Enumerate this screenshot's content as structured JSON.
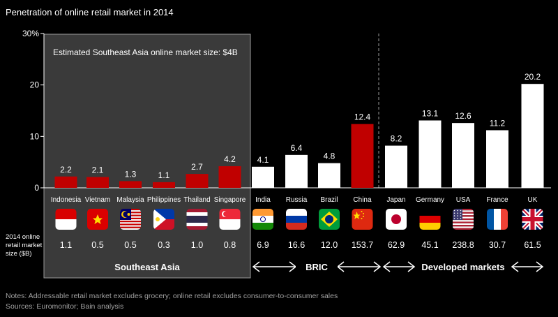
{
  "chart_data": {
    "type": "bar",
    "title": "Penetration of online retail market in 2014",
    "ylim": [
      0,
      30
    ],
    "yticks": [
      0,
      10,
      20,
      30
    ],
    "ytick_labels": [
      "0",
      "10",
      "20",
      "30%"
    ],
    "categories": [
      "Indonesia",
      "Vietnam",
      "Malaysia",
      "Philippines",
      "Thailand",
      "Singapore",
      "India",
      "Russia",
      "Brazil",
      "China",
      "Japan",
      "Germany",
      "USA",
      "France",
      "UK"
    ],
    "values": [
      2.2,
      2.1,
      1.3,
      1.1,
      2.7,
      4.2,
      4.1,
      6.4,
      4.8,
      12.4,
      8.2,
      13.1,
      12.6,
      11.2,
      20.2
    ],
    "value_labels": [
      "2.2",
      "2.1",
      "1.3",
      "1.1",
      "2.7",
      "4.2",
      "4.1",
      "6.4",
      "4.8",
      "12.4",
      "8.2",
      "13.1",
      "12.6",
      "11.2",
      "20.2"
    ],
    "bar_colors": [
      "#c00000",
      "#c00000",
      "#c00000",
      "#c00000",
      "#c00000",
      "#c00000",
      "#ffffff",
      "#ffffff",
      "#ffffff",
      "#c00000",
      "#ffffff",
      "#ffffff",
      "#ffffff",
      "#ffffff",
      "#ffffff"
    ],
    "market_size_label": [
      "2014 online",
      "retail market",
      "size ($B)"
    ],
    "market_size_values": [
      "1.1",
      "0.5",
      "0.5",
      "0.3",
      "1.0",
      "0.8",
      "6.9",
      "16.6",
      "12.0",
      "153.7",
      "62.9",
      "45.1",
      "238.8",
      "30.7",
      "61.5"
    ],
    "flags": [
      "indonesia-flag-icon",
      "vietnam-flag-icon",
      "malaysia-flag-icon",
      "philippines-flag-icon",
      "thailand-flag-icon",
      "singapore-flag-icon",
      "india-flag-icon",
      "russia-flag-icon",
      "brazil-flag-icon",
      "china-flag-icon",
      "japan-flag-icon",
      "germany-flag-icon",
      "usa-flag-icon",
      "france-flag-icon",
      "uk-flag-icon"
    ],
    "annotation": "Estimated Southeast Asia online market size: $4B",
    "groups": [
      {
        "label": "Southeast Asia",
        "start": 0,
        "end": 5
      },
      {
        "label": "BRIC",
        "start": 6,
        "end": 9
      },
      {
        "label": "Developed markets",
        "start": 10,
        "end": 14
      }
    ],
    "colors": {
      "background": "#000000",
      "highlight": "#c00000",
      "bar": "#ffffff",
      "sea_panel": "#3a3a3a"
    }
  },
  "notes": "Notes: Addressable retail market excludes grocery; online retail excludes consumer-to-consumer sales",
  "sources": "Sources: Euromonitor; Bain analysis"
}
